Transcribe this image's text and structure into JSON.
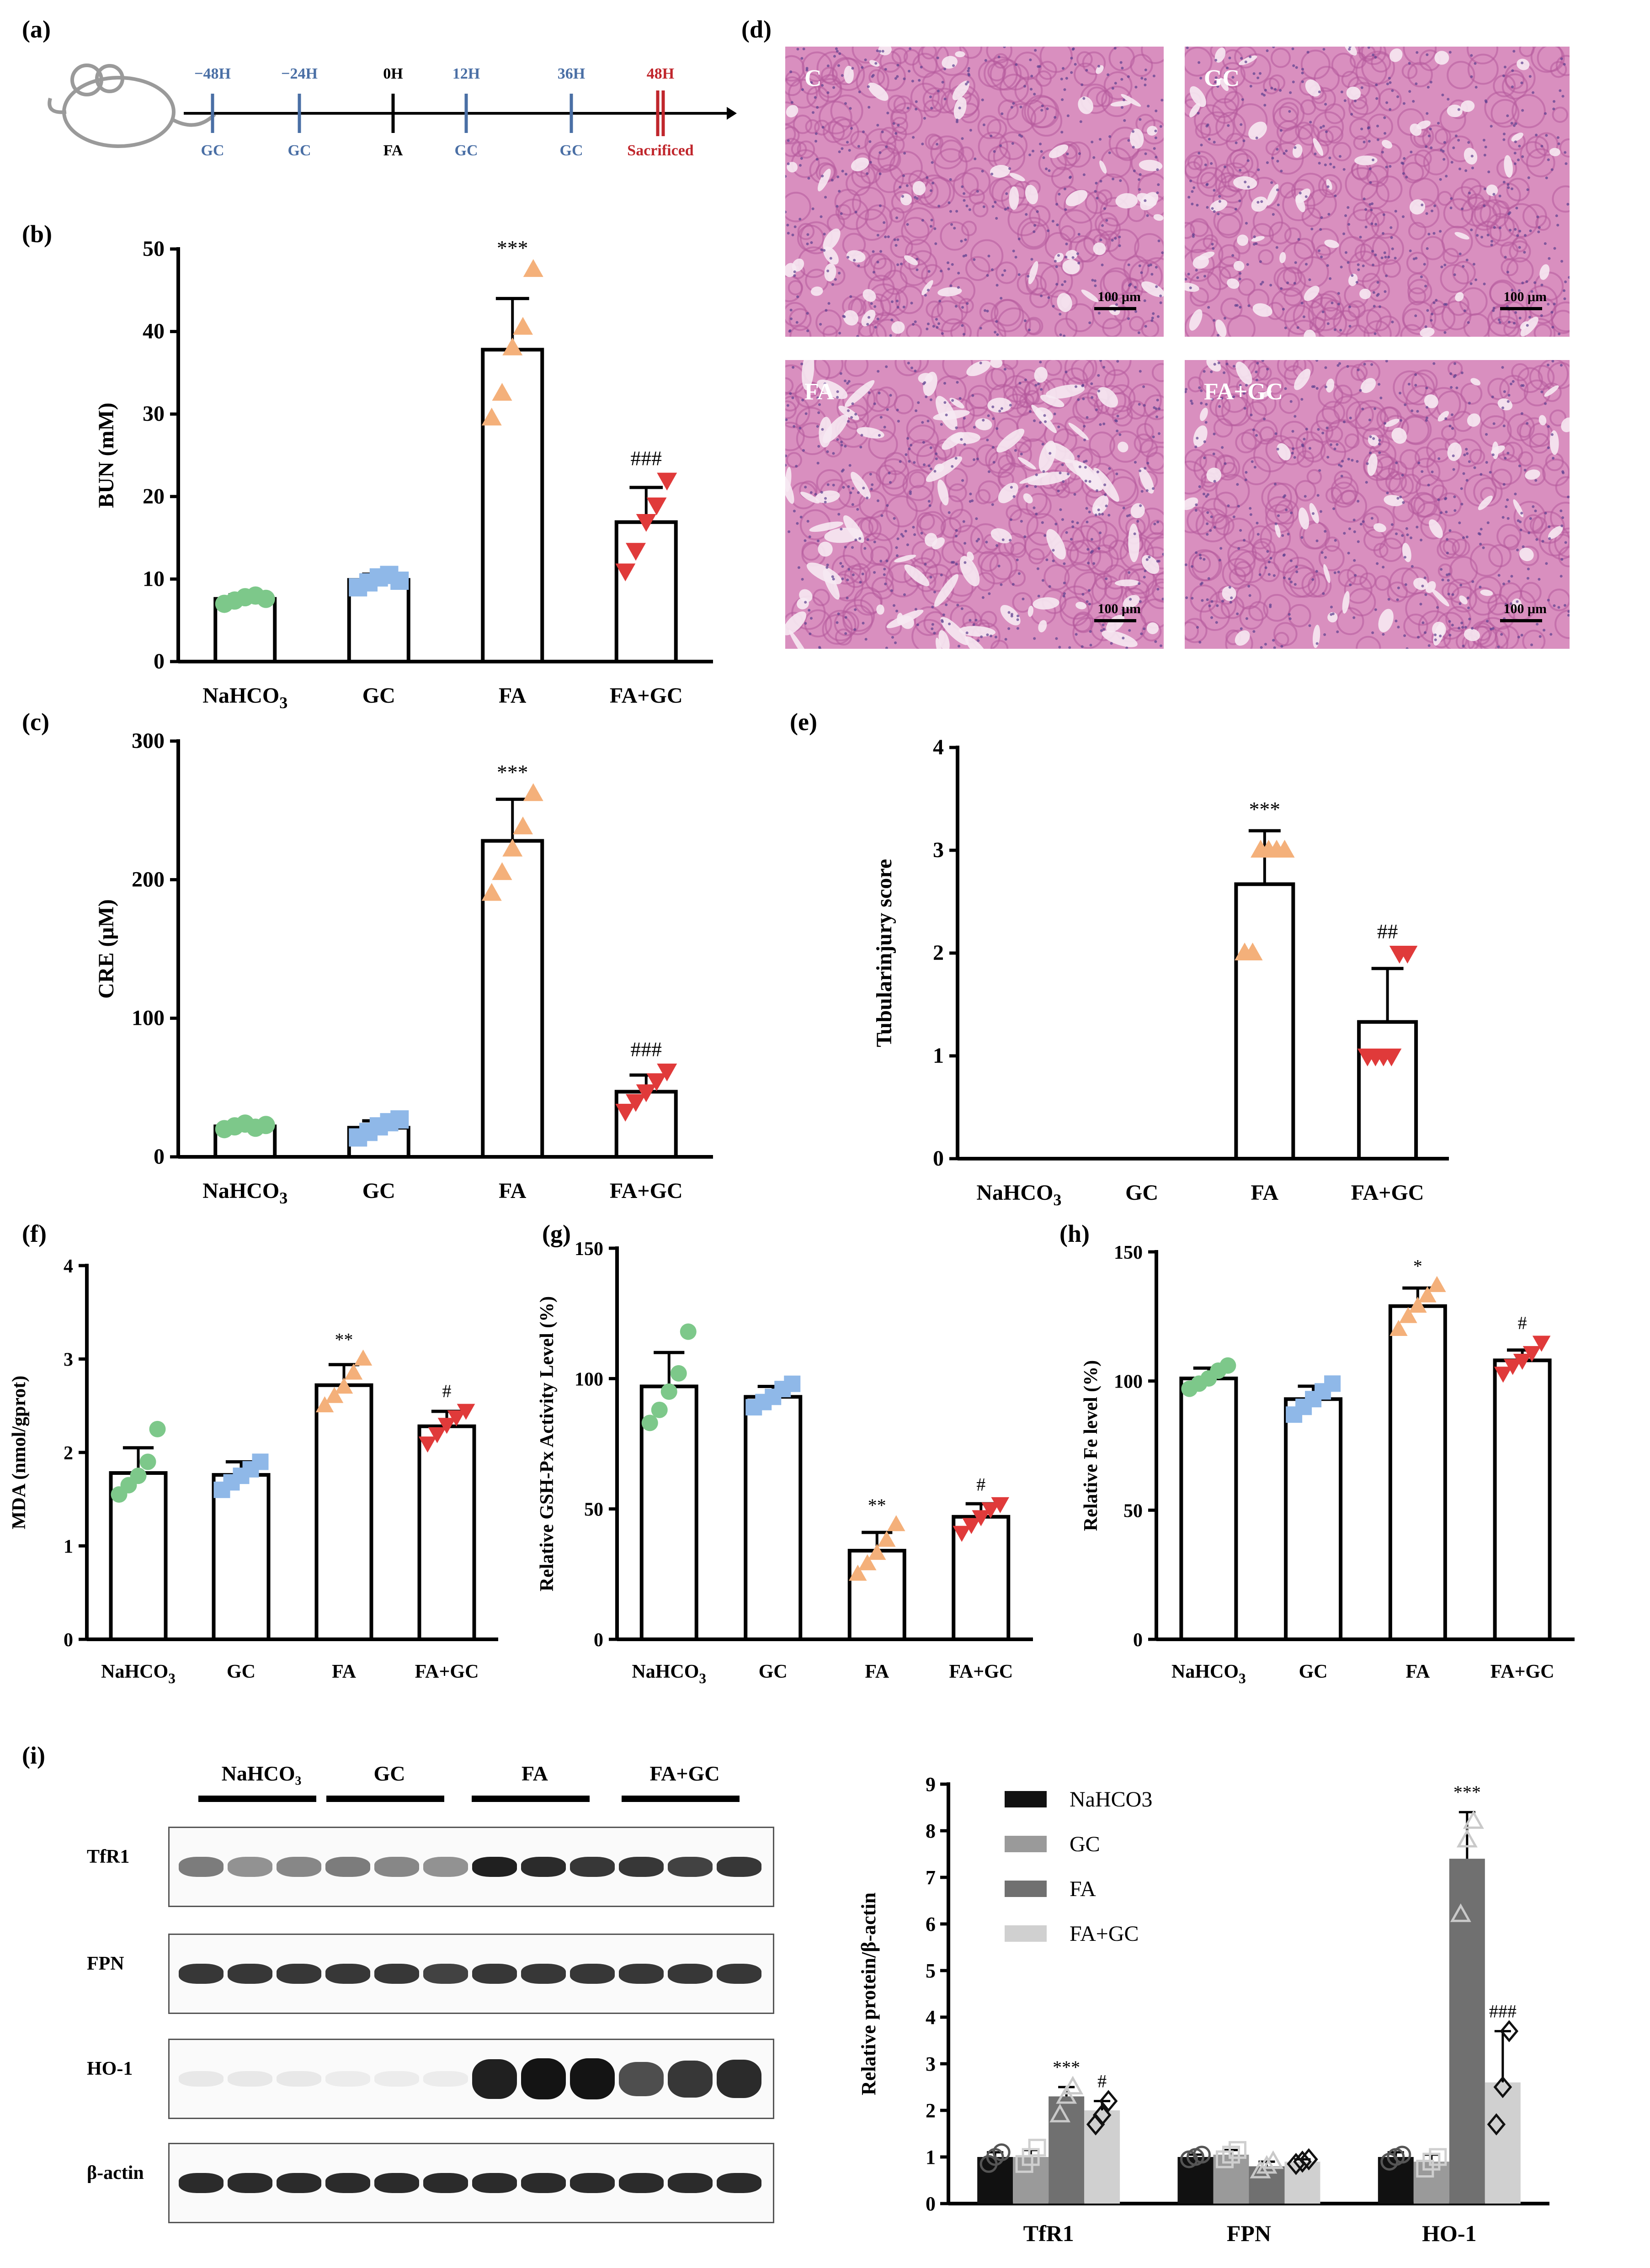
{
  "panel_labels": [
    "(a)",
    "(b)",
    "(c)",
    "(d)",
    "(e)",
    "(f)",
    "(g)",
    "(h)",
    "(i)"
  ],
  "colors": {
    "nahco3": "#7dc88a",
    "gc": "#8fb8e8",
    "fa": "#f4b07a",
    "fagc": "#e03a3a",
    "timeline_blue": "#4a6fa5",
    "timeline_red": "#c0262c",
    "he_stain": "#d98fbf",
    "wb_band": "#1a1a1a",
    "bar_nahco3": "#111111",
    "bar_gc": "#9a9a9a",
    "bar_fa": "#707070",
    "bar_fagc": "#d0d0d0"
  },
  "timeline": {
    "events": [
      {
        "time": "−48H",
        "treat": "GC",
        "time_color": "blue"
      },
      {
        "time": "−24H",
        "treat": "GC",
        "time_color": "blue"
      },
      {
        "time": "0H",
        "treat": "FA",
        "time_color": "black"
      },
      {
        "time": "12H",
        "treat": "GC",
        "time_color": "blue"
      },
      {
        "time": "36H",
        "treat": "GC",
        "time_color": "blue"
      },
      {
        "time": "48H",
        "treat": "Sacrificed",
        "time_color": "red"
      }
    ]
  },
  "histology": {
    "panels": [
      {
        "label": "C",
        "scale": "100 μm"
      },
      {
        "label": "GC",
        "scale": "100 μm"
      },
      {
        "label": "FA",
        "scale": "100 μm"
      },
      {
        "label": "FA+GC",
        "scale": "100 μm"
      }
    ]
  },
  "western_blot": {
    "groups": [
      "NaHCO₃",
      "GC",
      "FA",
      "FA+GC"
    ],
    "rows": [
      "TfR1",
      "FPN",
      "HO-1",
      "β-actin"
    ]
  },
  "chart_data": [
    {
      "id": "b",
      "type": "bar",
      "ylabel": "BUN  (mM)",
      "ylim": [
        0,
        50
      ],
      "yticks": [
        0,
        10,
        20,
        30,
        40,
        50
      ],
      "categories": [
        "NaHCO₃",
        "GC",
        "FA",
        "FA+GC"
      ],
      "values": [
        7.6,
        9.9,
        37.8,
        16.9
      ],
      "errors": [
        0.5,
        0.7,
        6.2,
        4.2
      ],
      "markers": [
        "circle",
        "square",
        "triangle-up",
        "triangle-down"
      ],
      "points": [
        [
          7.0,
          7.4,
          7.8,
          8.0,
          7.6
        ],
        [
          9.0,
          9.6,
          10.2,
          10.5,
          9.8
        ],
        [
          29.5,
          32.5,
          38.0,
          40.5,
          47.5
        ],
        [
          11.0,
          13.5,
          17.0,
          19.0,
          22.0
        ]
      ],
      "annotations": [
        "",
        "",
        "***",
        "###"
      ]
    },
    {
      "id": "c",
      "type": "bar",
      "ylabel": "CRE (μM)",
      "ylim": [
        0,
        300
      ],
      "yticks": [
        0,
        100,
        200,
        300
      ],
      "categories": [
        "NaHCO₃",
        "GC",
        "FA",
        "FA+GC"
      ],
      "values": [
        22,
        21,
        228,
        47
      ],
      "errors": [
        3,
        5,
        30,
        12
      ],
      "markers": [
        "circle",
        "square",
        "triangle-up",
        "triangle-down"
      ],
      "points": [
        [
          20,
          22,
          24,
          21,
          23
        ],
        [
          14,
          18,
          22,
          25,
          27
        ],
        [
          190,
          205,
          222,
          238,
          262
        ],
        [
          33,
          40,
          47,
          55,
          62
        ]
      ],
      "annotations": [
        "",
        "",
        "***",
        "###"
      ]
    },
    {
      "id": "e",
      "type": "bar",
      "ylabel": "Tubularinjury score",
      "ylim": [
        0,
        4
      ],
      "yticks": [
        0,
        1,
        2,
        3,
        4
      ],
      "categories": [
        "NaHCO₃",
        "GC",
        "FA",
        "FA+GC"
      ],
      "values": [
        0,
        0,
        2.67,
        1.33
      ],
      "errors": [
        0,
        0,
        0.52,
        0.52
      ],
      "markers": [
        "circle",
        "square",
        "triangle-up",
        "triangle-down"
      ],
      "points": [
        [],
        [],
        [
          2,
          2,
          3,
          3,
          3,
          3
        ],
        [
          1,
          1,
          1,
          1,
          2,
          2
        ]
      ],
      "annotations": [
        "",
        "",
        "***",
        "##"
      ]
    },
    {
      "id": "f",
      "type": "bar",
      "ylabel": "MDA (nmol/gprot)",
      "ylim": [
        0,
        4
      ],
      "yticks": [
        0,
        1,
        2,
        3,
        4
      ],
      "categories": [
        "NaHCO₃",
        "GC",
        "FA",
        "FA+GC"
      ],
      "values": [
        1.78,
        1.76,
        2.72,
        2.28
      ],
      "errors": [
        0.27,
        0.14,
        0.22,
        0.16
      ],
      "markers": [
        "circle",
        "square",
        "triangle-up",
        "triangle-down"
      ],
      "points": [
        [
          1.55,
          1.65,
          1.75,
          1.9,
          2.25
        ],
        [
          1.6,
          1.68,
          1.75,
          1.82,
          1.9
        ],
        [
          2.5,
          2.6,
          2.7,
          2.85,
          3.0
        ],
        [
          2.1,
          2.2,
          2.3,
          2.38,
          2.45
        ]
      ],
      "annotations": [
        "",
        "",
        "**",
        "#"
      ]
    },
    {
      "id": "g",
      "type": "bar",
      "ylabel": "Relative GSH-Px Activity Level  (%)",
      "ylim": [
        0,
        150
      ],
      "yticks": [
        0,
        50,
        100,
        150
      ],
      "categories": [
        "NaHCO₃",
        "GC",
        "FA",
        "FA+GC"
      ],
      "values": [
        97,
        93,
        34,
        47
      ],
      "errors": [
        13,
        4,
        7,
        5
      ],
      "markers": [
        "circle",
        "square",
        "triangle-up",
        "triangle-down"
      ],
      "points": [
        [
          83,
          88,
          95,
          102,
          118
        ],
        [
          89,
          91,
          93,
          96,
          98
        ],
        [
          25,
          29,
          33,
          38,
          44
        ],
        [
          41,
          44,
          47,
          50,
          52
        ]
      ],
      "annotations": [
        "",
        "",
        "**",
        "#"
      ]
    },
    {
      "id": "h",
      "type": "bar",
      "ylabel": "Relative Fe level (%)",
      "ylim": [
        0,
        150
      ],
      "yticks": [
        0,
        50,
        100,
        150
      ],
      "categories": [
        "NaHCO₃",
        "GC",
        "FA",
        "FA+GC"
      ],
      "values": [
        101,
        93,
        129,
        108
      ],
      "errors": [
        4,
        5,
        7,
        4
      ],
      "markers": [
        "circle",
        "square",
        "triangle-up",
        "triangle-down"
      ],
      "points": [
        [
          97,
          99,
          101,
          104,
          106
        ],
        [
          87,
          90,
          93,
          96,
          99
        ],
        [
          120,
          125,
          129,
          133,
          137
        ],
        [
          103,
          106,
          108,
          111,
          115
        ]
      ],
      "annotations": [
        "",
        "",
        "*",
        "#"
      ]
    },
    {
      "id": "i",
      "type": "bar",
      "ylabel": "Relative protein/β-actin",
      "ylim": [
        0,
        9
      ],
      "yticks": [
        0,
        1,
        2,
        3,
        4,
        5,
        6,
        7,
        8,
        9
      ],
      "categories": [
        "TfR1",
        "FPN",
        "HO-1"
      ],
      "series": [
        {
          "name": "NaHCO₃",
          "values": [
            1.0,
            1.0,
            1.0
          ],
          "errors": [
            0.1,
            0.05,
            0.1
          ],
          "points": [
            [
              0.85,
              1.0,
              1.1
            ],
            [
              0.95,
              1.0,
              1.05
            ],
            [
              0.9,
              1.0,
              1.05
            ]
          ]
        },
        {
          "name": "GC",
          "values": [
            1.0,
            1.05,
            0.9
          ],
          "errors": [
            0.15,
            0.1,
            0.15
          ],
          "points": [
            [
              0.85,
              1.0,
              1.2
            ],
            [
              0.95,
              1.05,
              1.15
            ],
            [
              0.75,
              0.9,
              1.0
            ]
          ]
        },
        {
          "name": "FA",
          "values": [
            2.3,
            0.8,
            7.4
          ],
          "errors": [
            0.2,
            0.1,
            1.0
          ],
          "points": [
            [
              1.9,
              2.3,
              2.5
            ],
            [
              0.7,
              0.8,
              0.9
            ],
            [
              6.2,
              7.8,
              8.2
            ]
          ]
        },
        {
          "name": "FA+GC",
          "values": [
            2.0,
            0.9,
            2.6
          ],
          "errors": [
            0.2,
            0.05,
            1.1
          ],
          "points": [
            [
              1.7,
              1.9,
              2.2
            ],
            [
              0.85,
              0.9,
              0.95
            ],
            [
              1.7,
              2.5,
              3.7
            ]
          ]
        }
      ],
      "annotations": [
        [
          "",
          "",
          "***",
          "#"
        ],
        [
          "",
          "",
          "",
          ""
        ],
        [
          "",
          "",
          "***",
          "###"
        ]
      ],
      "legend": "top-left"
    }
  ]
}
